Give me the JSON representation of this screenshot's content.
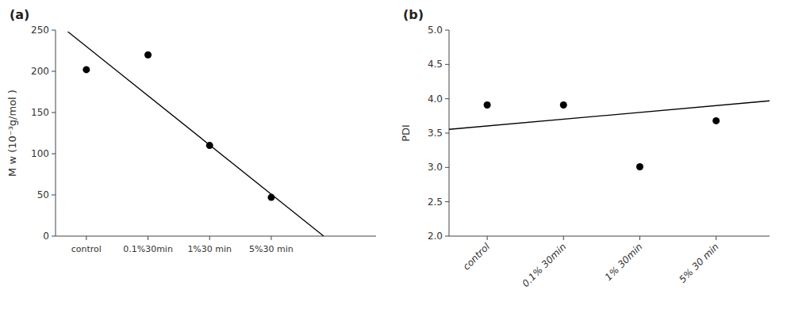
{
  "chart_data": [
    {
      "type": "scatter",
      "title": "(a)",
      "y_label": "M w (10⁻³g/mol )",
      "xlim": [
        -0.5,
        4.7
      ],
      "xticks": [
        {
          "value": 0,
          "label": "control"
        },
        {
          "value": 1,
          "label": "0.1%30min"
        },
        {
          "value": 2,
          "label": "1%30 min"
        },
        {
          "value": 3,
          "label": "5%30 min"
        }
      ],
      "ylim": [
        0,
        250
      ],
      "yticks": [
        0,
        50,
        100,
        150,
        200,
        250
      ],
      "series": [
        {
          "type": "scatter",
          "x": [
            0,
            1,
            2,
            3
          ],
          "values": [
            202,
            220,
            110,
            47
          ],
          "color": "black"
        },
        {
          "type": "line",
          "x": [
            -0.3,
            3.85
          ],
          "values": [
            248,
            0
          ],
          "color": "black",
          "line_style": "solid"
        }
      ]
    },
    {
      "type": "scatter",
      "title": "(b)",
      "y_label": "PDI",
      "xlim": [
        -0.5,
        3.7
      ],
      "xticks": [
        {
          "value": 0,
          "label": "control"
        },
        {
          "value": 1,
          "label": "0.1% 30min"
        },
        {
          "value": 2,
          "label": "1% 30min"
        },
        {
          "value": 3,
          "label": "5% 30 min"
        }
      ],
      "ylim": [
        2.0,
        5.0
      ],
      "yticks": [
        {
          "value": 2.0,
          "label": "2.0"
        },
        2.5,
        {
          "value": 3.0,
          "label": "3.0"
        },
        3.5,
        {
          "value": 4.0,
          "label": "4.0"
        },
        4.5,
        {
          "value": 5.0,
          "label": "5.0"
        }
      ],
      "series": [
        {
          "type": "scatter",
          "x": [
            0,
            1,
            2,
            3
          ],
          "values": [
            3.91,
            3.91,
            3.01,
            3.68
          ],
          "color": "black"
        },
        {
          "type": "line",
          "x": [
            -0.5,
            3.7
          ],
          "values": [
            3.555,
            3.97
          ],
          "color": "black",
          "line_style": "solid"
        }
      ]
    }
  ]
}
